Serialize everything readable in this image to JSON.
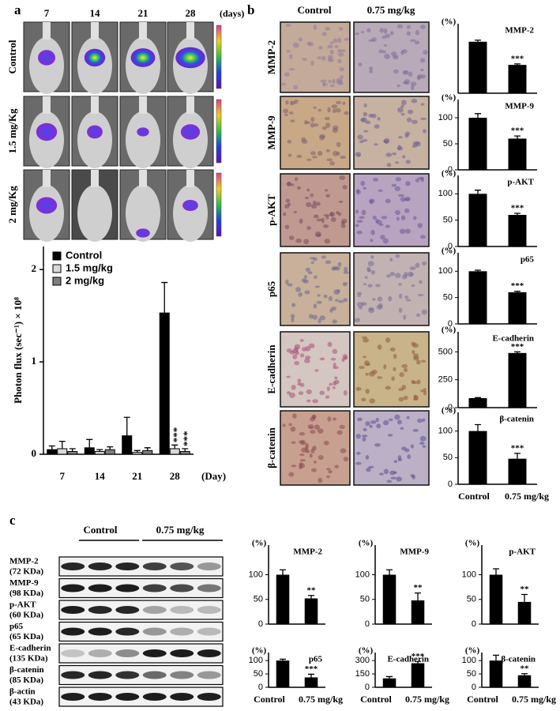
{
  "panel_labels": [
    "a",
    "b",
    "c"
  ],
  "panel_a": {
    "days": [
      "7",
      "14",
      "21",
      "28"
    ],
    "days_unit": "(days)",
    "rows": [
      "Control",
      "1.5 mg/Kg",
      "2 mg/Kg"
    ]
  },
  "panel_b": {
    "columns": [
      "Control",
      "0.75 mg/kg"
    ],
    "rows": [
      "MMP-2",
      "MMP-9",
      "p-AKT",
      "p65",
      "E-cadherin",
      "β-catenin"
    ]
  },
  "panel_c": {
    "columns": [
      "Control",
      "0.75 mg/kg"
    ],
    "blots": [
      {
        "name": "MMP-2",
        "size": "(72 KDa)"
      },
      {
        "name": "MMP-9",
        "size": "(98 KDa)"
      },
      {
        "name": "p-AKT",
        "size": "(60 KDa)"
      },
      {
        "name": "p65",
        "size": "(65 KDa)"
      },
      {
        "name": "E-cadherin",
        "size": "(135 KDa)"
      },
      {
        "name": "β-catenin",
        "size": "(85 KDa)"
      },
      {
        "name": "β-actin",
        "size": "(43 KDa)"
      }
    ]
  },
  "chart_data": [
    {
      "type": "grouped-bar",
      "categories": [
        "7",
        "14",
        "21",
        "28"
      ],
      "xlabel": "(Day)",
      "ylabel": "Photon flux (sec⁻¹) × 10⁸",
      "ylim": [
        0,
        2.25
      ],
      "yticks": [
        0,
        1,
        2
      ],
      "legend": "upper left",
      "series": [
        {
          "name": "Control",
          "color": "#000000",
          "values": [
            0.05,
            0.07,
            0.2,
            1.53
          ],
          "errors": [
            0.04,
            0.09,
            0.2,
            0.33
          ]
        },
        {
          "name": "1.5 mg/kg",
          "color": "#d9d9d9",
          "values": [
            0.06,
            0.03,
            0.02,
            0.06
          ],
          "errors": [
            0.08,
            0.02,
            0.02,
            0.04
          ],
          "stars": [
            null,
            null,
            null,
            "***"
          ]
        },
        {
          "name": "2 mg/kg",
          "color": "#808080",
          "values": [
            0.03,
            0.05,
            0.04,
            0.03
          ],
          "errors": [
            0.03,
            0.03,
            0.03,
            0.03
          ],
          "stars": [
            null,
            null,
            null,
            "***"
          ]
        }
      ]
    },
    {
      "type": "bar",
      "title": "MMP-2",
      "ylabel": "(%)",
      "values": [
        100,
        55
      ],
      "errors": [
        3,
        2
      ],
      "color": "#000000",
      "ylim": [
        0,
        135
      ],
      "yticks": [],
      "stars": [
        null,
        "***"
      ]
    },
    {
      "type": "bar",
      "title": "MMP-9",
      "ylabel": "(%)",
      "values": [
        100,
        60
      ],
      "errors": [
        8,
        5
      ],
      "color": "#000000",
      "ylim": [
        0,
        135
      ],
      "yticks": [
        0,
        50,
        100
      ],
      "stars": [
        null,
        "***"
      ]
    },
    {
      "type": "bar",
      "title": "p-AKT",
      "ylabel": "(%)",
      "values": [
        100,
        60
      ],
      "errors": [
        7,
        3
      ],
      "color": "#000000",
      "ylim": [
        0,
        135
      ],
      "yticks": [
        0,
        50,
        100
      ],
      "stars": [
        null,
        "***"
      ]
    },
    {
      "type": "bar",
      "title": "p65",
      "ylabel": "(%)",
      "values": [
        100,
        60
      ],
      "errors": [
        2,
        2
      ],
      "color": "#000000",
      "ylim": [
        0,
        135
      ],
      "yticks": [
        0,
        50,
        100
      ],
      "stars": [
        null,
        "***"
      ]
    },
    {
      "type": "bar",
      "title": "E-cadherin",
      "ylabel": "(%)",
      "values": [
        85,
        490
      ],
      "errors": [
        5,
        10
      ],
      "color": "#000000",
      "ylim": [
        0,
        680
      ],
      "yticks": [
        0,
        250,
        500
      ],
      "stars": [
        null,
        "***"
      ]
    },
    {
      "type": "bar",
      "title": "β-catenin",
      "ylabel": "(%)",
      "categories": [
        "Control",
        "0.75 mg/kg"
      ],
      "values": [
        100,
        48
      ],
      "errors": [
        12,
        10
      ],
      "color": "#000000",
      "ylim": [
        0,
        135
      ],
      "yticks": [
        0,
        50,
        100
      ],
      "stars": [
        null,
        "***"
      ]
    },
    {
      "type": "bar",
      "title": "MMP-2",
      "ylabel": "(%)",
      "values": [
        100,
        52
      ],
      "errors": [
        10,
        6
      ],
      "color": "#000000",
      "ylim": [
        0,
        160
      ],
      "yticks": [
        0,
        50,
        100
      ],
      "stars": [
        null,
        "**"
      ]
    },
    {
      "type": "bar",
      "title": "MMP-9",
      "ylabel": "(%)",
      "values": [
        100,
        48
      ],
      "errors": [
        10,
        15
      ],
      "color": "#000000",
      "ylim": [
        0,
        160
      ],
      "yticks": [
        0,
        50,
        100
      ],
      "stars": [
        null,
        "**"
      ]
    },
    {
      "type": "bar",
      "title": "p-AKT",
      "ylabel": "(%)",
      "values": [
        100,
        45
      ],
      "errors": [
        12,
        15
      ],
      "color": "#000000",
      "ylim": [
        0,
        160
      ],
      "yticks": [
        0,
        50,
        100
      ],
      "stars": [
        null,
        "**"
      ]
    },
    {
      "type": "bar",
      "title": "p65",
      "ylabel": "(%)",
      "categories": [
        "Control",
        "0.75 mg/kg"
      ],
      "values": [
        100,
        37
      ],
      "errors": [
        5,
        12
      ],
      "color": "#000000",
      "ylim": [
        0,
        130
      ],
      "yticks": [
        0,
        50,
        100
      ],
      "stars": [
        null,
        "***"
      ]
    },
    {
      "type": "bar",
      "title": "E-cadherin",
      "ylabel": "(%)",
      "categories": [
        "Control",
        "0.75 mg/kg"
      ],
      "values": [
        100,
        270
      ],
      "errors": [
        20,
        20
      ],
      "color": "#000000",
      "ylim": [
        0,
        390
      ],
      "yticks": [
        0,
        150,
        300
      ],
      "stars": [
        null,
        "***"
      ]
    },
    {
      "type": "bar",
      "title": "β-catenin",
      "ylabel": "(%)",
      "categories": [
        "Control",
        "0.75 mg/kg"
      ],
      "values": [
        100,
        45
      ],
      "errors": [
        20,
        6
      ],
      "color": "#000000",
      "ylim": [
        0,
        130
      ],
      "yticks": [
        0,
        50,
        100
      ],
      "stars": [
        null,
        "**"
      ]
    }
  ]
}
